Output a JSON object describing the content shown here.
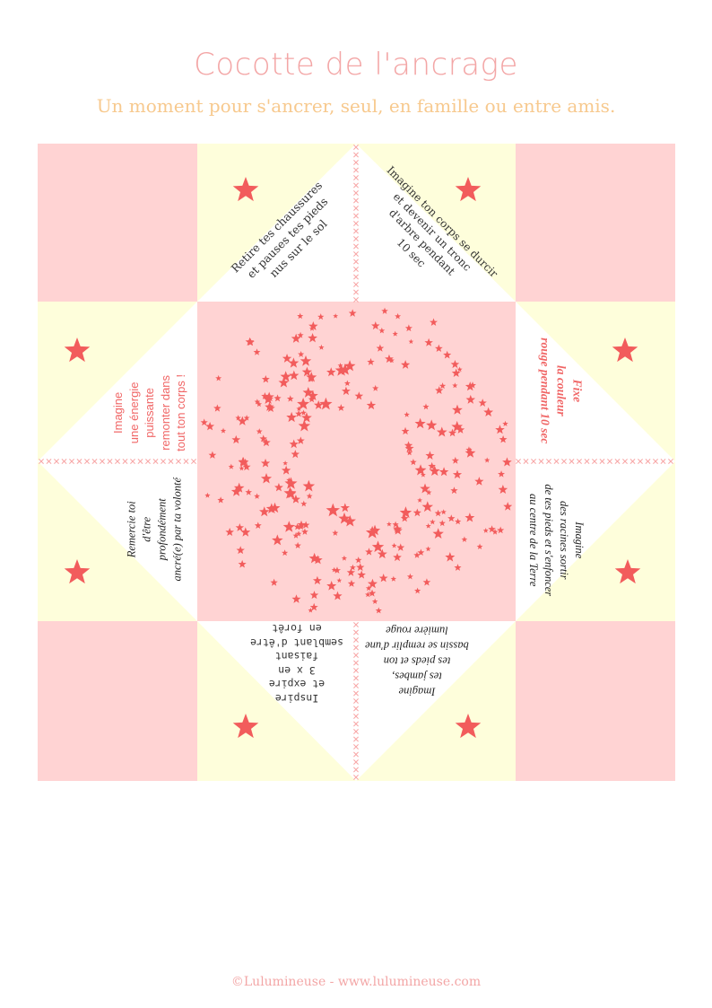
{
  "header": {
    "title": "Cocotte de l'ancrage",
    "subtitle": "Un moment pour s'ancrer, seul, en famille ou entre amis."
  },
  "footer": {
    "text": "©Lulumineuse - www.lulumineuse.com"
  },
  "colors": {
    "pink": "#ffd3d3",
    "cream": "#fefedb",
    "star": "#f25c5c",
    "cross": "#f7a5a5"
  },
  "flaps": [
    {
      "id": "top-left",
      "lines": [
        "Retire tes chaussures",
        "et pauses tes pieds",
        "nus sur le sol"
      ]
    },
    {
      "id": "top-right",
      "lines": [
        "Imagine ton corps se durcir",
        "et devenir un tronc",
        "d'arbre pendant",
        "10 sec"
      ]
    },
    {
      "id": "right-top",
      "lines": [
        "Fixe",
        "la couleur",
        "rouge pendant 10 sec"
      ]
    },
    {
      "id": "right-bottom",
      "lines": [
        "Imagine",
        "des racines sortir",
        "de tes pieds et s'enfoncer",
        "au centre de la Terre"
      ]
    },
    {
      "id": "bottom-right",
      "lines": [
        "Imagine",
        "tes jambes,",
        "tes pieds et ton",
        "bassin se remplir d'une",
        "lumière rouge"
      ]
    },
    {
      "id": "bottom-left",
      "lines": [
        "Inspire",
        "et expire",
        "3 x en",
        "faisant",
        "semblant d'être",
        "en forêt"
      ]
    },
    {
      "id": "left-bottom",
      "lines": [
        "Remercie toi",
        "d'être",
        "profondément",
        "ancré(e) par ta volonté"
      ]
    },
    {
      "id": "left-top",
      "lines": [
        "Imagine",
        "une énergie",
        "puissante",
        "remonter dans",
        "tout ton corps !"
      ]
    }
  ]
}
